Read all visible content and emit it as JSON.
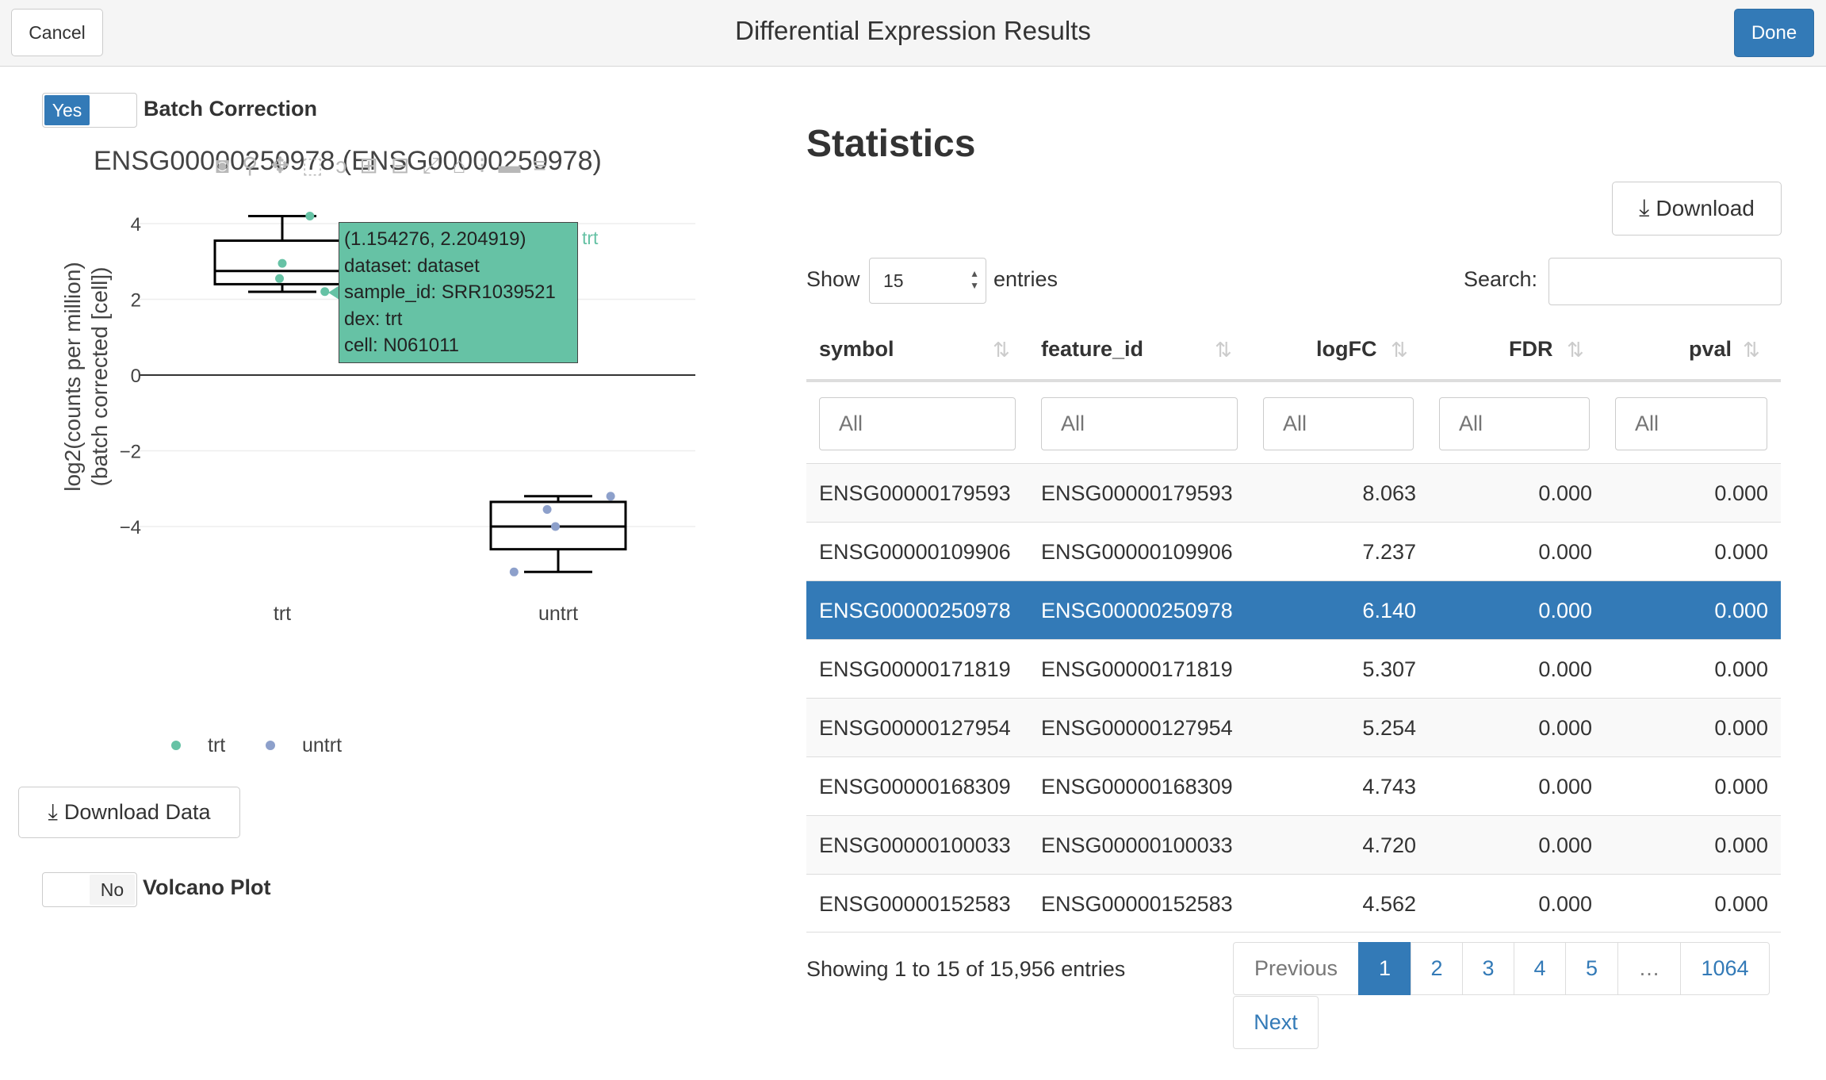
{
  "header": {
    "title": "Differential Expression Results",
    "cancel_label": "Cancel",
    "done_label": "Done"
  },
  "left": {
    "batch_switch": {
      "state": "Yes",
      "label": "Batch Correction"
    },
    "plot_title": "ENSG00000250978 (ENSG00000250978)",
    "tooltip": {
      "lines": [
        "(1.154276, 2.204919)",
        "dataset: dataset",
        "sample_id: SRR1039521",
        "dex: trt",
        "cell: N061011"
      ],
      "trace": "trt"
    },
    "legend": [
      {
        "name": "trt",
        "color": "#66c2a5"
      },
      {
        "name": "untrt",
        "color": "#8da0cb"
      }
    ],
    "download_data_label": "Download Data",
    "volcano_switch": {
      "state": "No",
      "label": "Volcano Plot"
    }
  },
  "chart_data": {
    "type": "box",
    "title": "ENSG00000250978 (ENSG00000250978)",
    "ylabel": "log2(counts per million)\n(batch corrected [cell])",
    "ylabel_lines": [
      "log2(counts per million)",
      "(batch corrected [cell])"
    ],
    "ylim": [
      -5.6,
      4.5
    ],
    "yticks": [
      4,
      2,
      0,
      -2,
      -4
    ],
    "ytick_labels": [
      "4",
      "2",
      "0",
      "−2",
      "−4"
    ],
    "categories": [
      "trt",
      "untrt"
    ],
    "series": [
      {
        "name": "trt",
        "color": "#66c2a5",
        "box": {
          "min": 2.2,
          "q1": 2.4,
          "median": 2.75,
          "q3": 3.55,
          "max": 4.2
        },
        "points": [
          {
            "x": 1.1,
            "y": 4.2
          },
          {
            "x": 1.0,
            "y": 2.95
          },
          {
            "x": 0.99,
            "y": 2.55
          },
          {
            "x": 1.154276,
            "y": 2.204919
          }
        ]
      },
      {
        "name": "untrt",
        "color": "#8da0cb",
        "box": {
          "min": -5.2,
          "q1": -4.6,
          "median": -4.0,
          "q3": -3.35,
          "max": -3.2
        },
        "points": [
          {
            "x": 2.19,
            "y": -3.2
          },
          {
            "x": 1.96,
            "y": -3.55
          },
          {
            "x": 1.99,
            "y": -4.0
          },
          {
            "x": 1.84,
            "y": -5.2
          }
        ]
      }
    ],
    "grid": true,
    "legend_position": "bottom-left"
  },
  "stats": {
    "title": "Statistics",
    "download_label": "Download",
    "show_label": "Show",
    "page_length": "15",
    "entries_label": "entries",
    "search_label": "Search:",
    "search_value": "",
    "columns": [
      "symbol",
      "feature_id",
      "logFC",
      "FDR",
      "pval"
    ],
    "filter_placeholder": "All",
    "rows": [
      {
        "symbol": "ENSG00000179593",
        "feature_id": "ENSG00000179593",
        "logFC": "8.063",
        "FDR": "0.000",
        "pval": "0.000"
      },
      {
        "symbol": "ENSG00000109906",
        "feature_id": "ENSG00000109906",
        "logFC": "7.237",
        "FDR": "0.000",
        "pval": "0.000"
      },
      {
        "symbol": "ENSG00000250978",
        "feature_id": "ENSG00000250978",
        "logFC": "6.140",
        "FDR": "0.000",
        "pval": "0.000"
      },
      {
        "symbol": "ENSG00000171819",
        "feature_id": "ENSG00000171819",
        "logFC": "5.307",
        "FDR": "0.000",
        "pval": "0.000"
      },
      {
        "symbol": "ENSG00000127954",
        "feature_id": "ENSG00000127954",
        "logFC": "5.254",
        "FDR": "0.000",
        "pval": "0.000"
      },
      {
        "symbol": "ENSG00000168309",
        "feature_id": "ENSG00000168309",
        "logFC": "4.743",
        "FDR": "0.000",
        "pval": "0.000"
      },
      {
        "symbol": "ENSG00000100033",
        "feature_id": "ENSG00000100033",
        "logFC": "4.720",
        "FDR": "0.000",
        "pval": "0.000"
      },
      {
        "symbol": "ENSG00000152583",
        "feature_id": "ENSG00000152583",
        "logFC": "4.562",
        "FDR": "0.000",
        "pval": "0.000"
      }
    ],
    "selected_row": 2,
    "info": "Showing 1 to 15 of 15,956 entries",
    "pagination": {
      "previous": "Previous",
      "pages": [
        "1",
        "2",
        "3",
        "4",
        "5",
        "…",
        "1064"
      ],
      "active": "1",
      "next": "Next"
    }
  },
  "colors": {
    "accent": "#337ab7",
    "trt": "#66c2a5",
    "untrt": "#8da0cb"
  }
}
